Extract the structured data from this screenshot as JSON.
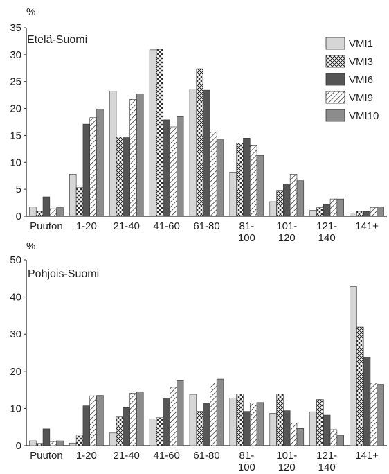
{
  "series_legend": [
    {
      "name": "VMI1",
      "pattern": "light"
    },
    {
      "name": "VMI3",
      "pattern": "crosshatch"
    },
    {
      "name": "VMI6",
      "pattern": "dark"
    },
    {
      "name": "VMI9",
      "pattern": "diagonal"
    },
    {
      "name": "VMI10",
      "pattern": "mid"
    }
  ],
  "colors": {
    "light": "#d6d6d6",
    "dark": "#555555",
    "mid": "#8c8c8c",
    "stroke": "#333333"
  },
  "chart_data": [
    {
      "type": "bar",
      "title": "Etelä-Suomi",
      "ylabel": "%",
      "ylim": [
        0,
        35
      ],
      "yticks": [
        0,
        5,
        10,
        15,
        20,
        25,
        30,
        35
      ],
      "legend": "top-right",
      "categories": [
        "Puuton",
        "1-20",
        "21-40",
        "41-60",
        "61-80",
        "81-\n100",
        "101-\n120",
        "121-\n140",
        "141+"
      ],
      "series": [
        {
          "name": "VMI1",
          "values": [
            1.7,
            7.8,
            23.2,
            30.9,
            23.6,
            8.2,
            2.7,
            1.1,
            0.6
          ]
        },
        {
          "name": "VMI3",
          "values": [
            0.9,
            5.3,
            14.7,
            31.0,
            27.4,
            13.6,
            4.8,
            1.6,
            0.9
          ]
        },
        {
          "name": "VMI6",
          "values": [
            3.6,
            17.1,
            14.6,
            17.9,
            23.4,
            14.5,
            6.0,
            2.2,
            0.9
          ]
        },
        {
          "name": "VMI9",
          "values": [
            1.4,
            18.3,
            21.7,
            16.6,
            15.6,
            13.2,
            7.8,
            3.2,
            1.6
          ]
        },
        {
          "name": "VMI10",
          "values": [
            1.6,
            19.9,
            22.7,
            18.5,
            14.2,
            11.3,
            6.6,
            3.2,
            1.7
          ]
        }
      ]
    },
    {
      "type": "bar",
      "title": "Pohjois-Suomi",
      "ylabel": "%",
      "ylim": [
        0,
        50
      ],
      "yticks": [
        0,
        10,
        20,
        30,
        40,
        50
      ],
      "categories": [
        "Puuton",
        "1-20",
        "21-40",
        "41-60",
        "61-80",
        "81-\n100",
        "101-\n120",
        "121-\n140",
        "141+"
      ],
      "series": [
        {
          "name": "VMI1",
          "values": [
            1.3,
            0.7,
            3.4,
            7.2,
            13.8,
            12.8,
            8.7,
            9.1,
            42.8
          ]
        },
        {
          "name": "VMI3",
          "values": [
            0.6,
            2.9,
            7.7,
            7.5,
            9.2,
            13.9,
            13.9,
            12.4,
            31.9
          ]
        },
        {
          "name": "VMI6",
          "values": [
            4.5,
            10.7,
            10.2,
            12.6,
            11.3,
            9.2,
            9.4,
            8.2,
            23.8
          ]
        },
        {
          "name": "VMI9",
          "values": [
            1.1,
            13.4,
            14.1,
            15.7,
            16.9,
            11.5,
            6.1,
            4.3,
            16.9
          ]
        },
        {
          "name": "VMI10",
          "values": [
            1.3,
            13.5,
            14.5,
            17.5,
            17.9,
            11.6,
            4.6,
            2.8,
            16.5
          ]
        }
      ]
    }
  ]
}
